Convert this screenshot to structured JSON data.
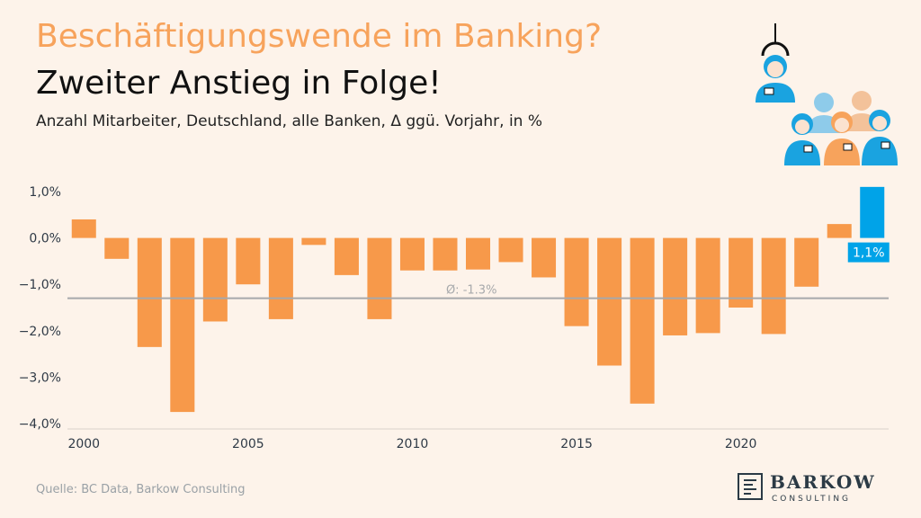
{
  "header": {
    "title_line1": "Beschäftigungswende im Banking?",
    "title_line2": "Zweiter Anstieg in Folge!",
    "subtitle": "Anzahl Mitarbeiter, Deutschland, alle Banken, Δ ggü. Vorjahr, in %"
  },
  "footer": {
    "source": "Quelle: BC Data, Barkow Consulting"
  },
  "logo": {
    "name": "BARKOW",
    "sub": "CONSULTING"
  },
  "illustration": {
    "icon": "bank-employees-icon",
    "colors": [
      "#1aa3e0",
      "#f7a35c",
      "#8ecbea",
      "#f3c29a"
    ]
  },
  "chart_data": {
    "type": "bar",
    "x": [
      2000,
      2001,
      2002,
      2003,
      2004,
      2005,
      2006,
      2007,
      2008,
      2009,
      2010,
      2011,
      2012,
      2013,
      2014,
      2015,
      2016,
      2017,
      2018,
      2019,
      2020,
      2021,
      2022,
      2023,
      2024
    ],
    "values": [
      0.4,
      -0.45,
      -2.35,
      -3.75,
      -1.8,
      -1.0,
      -1.75,
      -0.15,
      -0.8,
      -1.75,
      -0.7,
      -0.7,
      -0.68,
      -0.52,
      -0.85,
      -1.9,
      -2.75,
      -3.57,
      -2.1,
      -2.05,
      -1.5,
      -2.07,
      -1.05,
      0.3,
      1.1
    ],
    "highlight_index": 24,
    "highlight_label": "1,1%",
    "colors": {
      "default": "#f7994a",
      "highlight": "#00a3e8",
      "average_line": "#a7a9ab"
    },
    "average": {
      "value": -1.3,
      "label": "Ø: -1.3%"
    },
    "xticks": [
      2000,
      2005,
      2010,
      2015,
      2020
    ],
    "xtick_labels": [
      "2000",
      "2005",
      "2010",
      "2015",
      "2020"
    ],
    "yticks": [
      1.0,
      0.0,
      -1.0,
      -2.0,
      -3.0,
      -4.0
    ],
    "ytick_labels": [
      "1,0%",
      "0,0%",
      "−1,0%",
      "−2,0%",
      "−3,0%",
      "−4,0%"
    ],
    "ylim": [
      -4.0,
      1.0
    ],
    "title": "",
    "xlabel": "",
    "ylabel": ""
  }
}
